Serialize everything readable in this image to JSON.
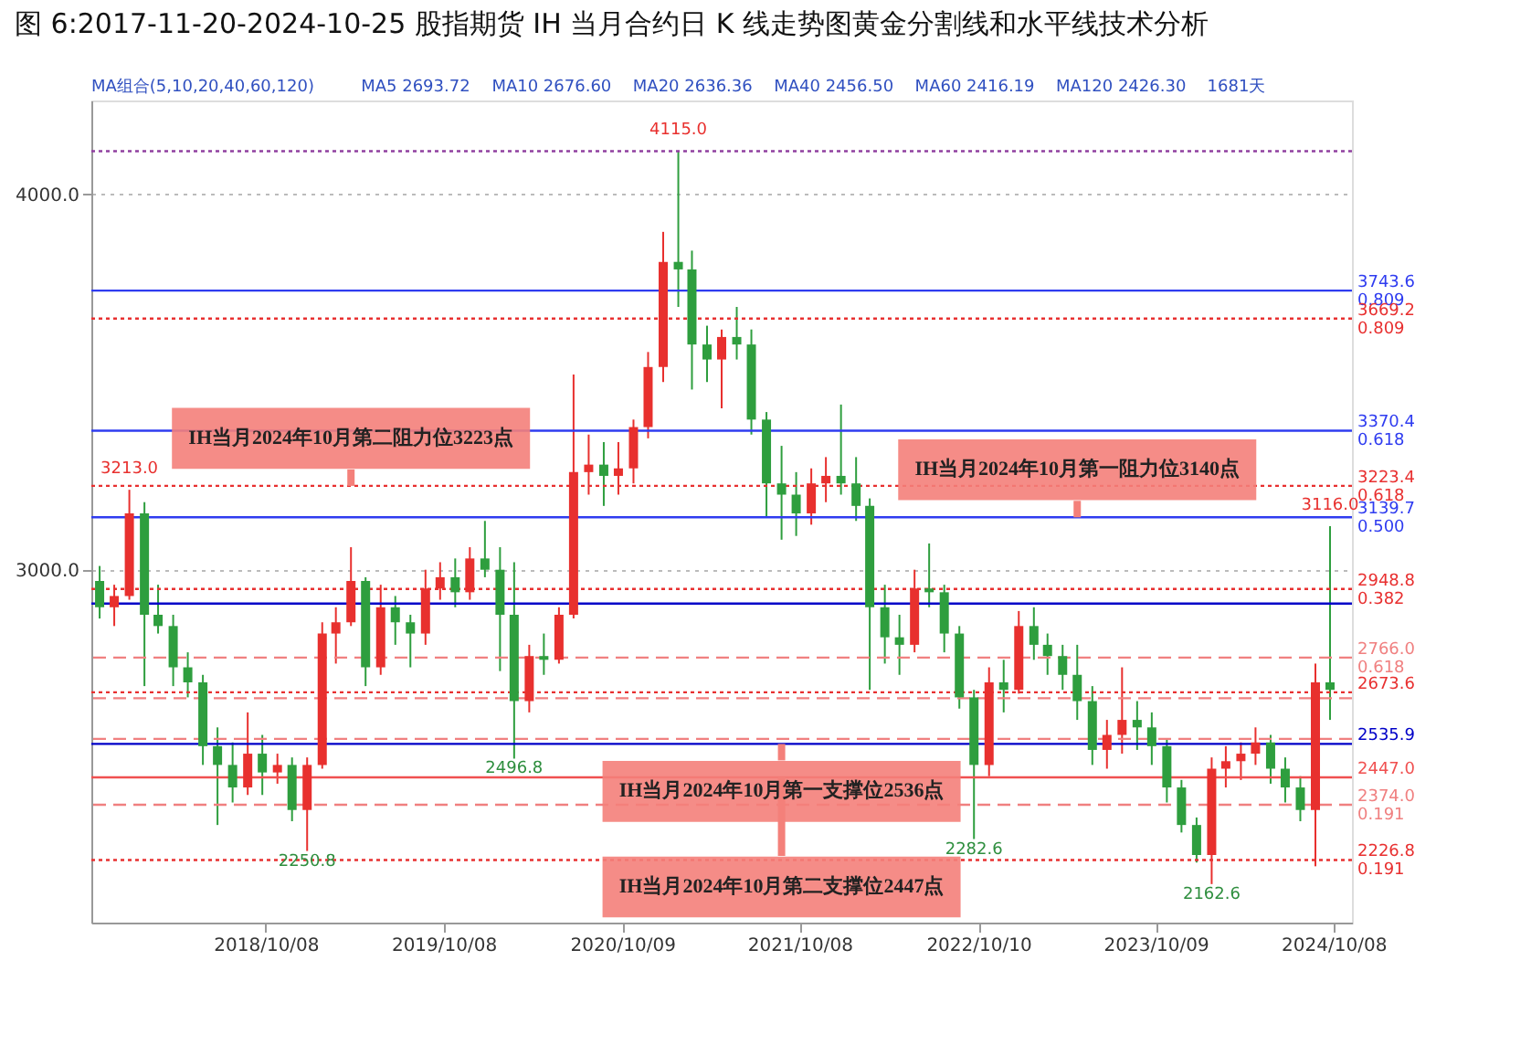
{
  "chart_data": {
    "type": "candlestick",
    "title": "图 6:2017-11-20-2024-10-25 股指期货 IH 当月合约日 K 线走势图黄金分割线和水平线技术分析",
    "x": [
      "2017-11",
      "2017-12",
      "2018-01",
      "2018-02",
      "2018-03",
      "2018-04",
      "2018-05",
      "2018-06",
      "2018-07",
      "2018-08",
      "2018-09",
      "2018-10",
      "2018-11",
      "2018-12",
      "2019-01",
      "2019-02",
      "2019-03",
      "2019-04",
      "2019-05",
      "2019-06",
      "2019-07",
      "2019-08",
      "2019-09",
      "2019-10",
      "2019-11",
      "2019-12",
      "2020-01",
      "2020-02",
      "2020-03",
      "2020-04",
      "2020-05",
      "2020-06",
      "2020-07",
      "2020-08",
      "2020-09",
      "2020-10",
      "2020-11",
      "2020-12",
      "2021-01",
      "2021-02",
      "2021-03",
      "2021-04",
      "2021-05",
      "2021-06",
      "2021-07",
      "2021-08",
      "2021-09",
      "2021-10",
      "2021-11",
      "2021-12",
      "2022-01",
      "2022-02",
      "2022-03",
      "2022-04",
      "2022-05",
      "2022-06",
      "2022-07",
      "2022-08",
      "2022-09",
      "2022-10",
      "2022-11",
      "2022-12",
      "2023-01",
      "2023-02",
      "2023-03",
      "2023-04",
      "2023-05",
      "2023-06",
      "2023-07",
      "2023-08",
      "2023-09",
      "2023-10",
      "2023-11",
      "2023-12",
      "2024-01",
      "2024-02",
      "2024-03",
      "2024-04",
      "2024-05",
      "2024-06",
      "2024-07",
      "2024-08",
      "2024-09",
      "2024-10"
    ],
    "ohlc": [
      [
        2970,
        3010,
        2870,
        2900
      ],
      [
        2900,
        2960,
        2850,
        2930
      ],
      [
        2930,
        3213.0,
        2920,
        3150
      ],
      [
        3150,
        3180,
        2690,
        2880
      ],
      [
        2880,
        2960,
        2830,
        2850
      ],
      [
        2850,
        2880,
        2690,
        2740
      ],
      [
        2740,
        2780,
        2660,
        2700
      ],
      [
        2700,
        2720,
        2480,
        2530
      ],
      [
        2530,
        2580,
        2320,
        2480
      ],
      [
        2480,
        2540,
        2380,
        2420
      ],
      [
        2420,
        2620,
        2400,
        2510
      ],
      [
        2510,
        2560,
        2400,
        2460
      ],
      [
        2460,
        2510,
        2430,
        2480
      ],
      [
        2480,
        2500,
        2330,
        2360
      ],
      [
        2360,
        2500,
        2250.8,
        2480
      ],
      [
        2480,
        2860,
        2470,
        2830
      ],
      [
        2830,
        2900,
        2750,
        2860
      ],
      [
        2860,
        3060,
        2850,
        2970
      ],
      [
        2970,
        2980,
        2690,
        2740
      ],
      [
        2740,
        2960,
        2720,
        2900
      ],
      [
        2900,
        2930,
        2800,
        2860
      ],
      [
        2860,
        2880,
        2740,
        2830
      ],
      [
        2830,
        3000,
        2800,
        2950
      ],
      [
        2950,
        3020,
        2920,
        2980
      ],
      [
        2980,
        3030,
        2900,
        2940
      ],
      [
        2940,
        3060,
        2920,
        3030
      ],
      [
        3030,
        3130,
        2980,
        3000
      ],
      [
        3000,
        3060,
        2730,
        2880
      ],
      [
        2880,
        3020,
        2496.8,
        2650
      ],
      [
        2650,
        2800,
        2620,
        2770
      ],
      [
        2770,
        2830,
        2720,
        2760
      ],
      [
        2760,
        2900,
        2750,
        2880
      ],
      [
        2880,
        3520,
        2870,
        3260
      ],
      [
        3260,
        3360,
        3200,
        3280
      ],
      [
        3280,
        3340,
        3170,
        3250
      ],
      [
        3250,
        3340,
        3200,
        3270
      ],
      [
        3270,
        3400,
        3230,
        3380
      ],
      [
        3380,
        3580,
        3350,
        3540
      ],
      [
        3540,
        3900,
        3500,
        3820
      ],
      [
        3820,
        4115.0,
        3700,
        3800
      ],
      [
        3800,
        3850,
        3480,
        3600
      ],
      [
        3600,
        3650,
        3500,
        3560
      ],
      [
        3560,
        3640,
        3430,
        3620
      ],
      [
        3620,
        3700,
        3560,
        3600
      ],
      [
        3600,
        3640,
        3360,
        3400
      ],
      [
        3400,
        3420,
        3140,
        3230
      ],
      [
        3230,
        3330,
        3080,
        3200
      ],
      [
        3200,
        3260,
        3090,
        3150
      ],
      [
        3150,
        3270,
        3120,
        3230
      ],
      [
        3230,
        3300,
        3180,
        3250
      ],
      [
        3250,
        3440,
        3200,
        3230
      ],
      [
        3230,
        3300,
        3130,
        3170
      ],
      [
        3170,
        3190,
        2680,
        2900
      ],
      [
        2900,
        2960,
        2750,
        2820
      ],
      [
        2820,
        2880,
        2720,
        2800
      ],
      [
        2800,
        3000,
        2780,
        2950
      ],
      [
        2950,
        3070,
        2900,
        2940
      ],
      [
        2940,
        2960,
        2780,
        2830
      ],
      [
        2830,
        2850,
        2630,
        2660
      ],
      [
        2660,
        2680,
        2282.6,
        2480
      ],
      [
        2480,
        2740,
        2450,
        2700
      ],
      [
        2700,
        2760,
        2620,
        2680
      ],
      [
        2680,
        2890,
        2670,
        2850
      ],
      [
        2850,
        2900,
        2760,
        2800
      ],
      [
        2800,
        2830,
        2720,
        2770
      ],
      [
        2770,
        2800,
        2680,
        2720
      ],
      [
        2720,
        2800,
        2600,
        2650
      ],
      [
        2650,
        2690,
        2480,
        2520
      ],
      [
        2520,
        2600,
        2470,
        2560
      ],
      [
        2560,
        2740,
        2510,
        2600
      ],
      [
        2600,
        2650,
        2520,
        2580
      ],
      [
        2580,
        2620,
        2480,
        2530
      ],
      [
        2530,
        2550,
        2380,
        2420
      ],
      [
        2420,
        2440,
        2300,
        2320
      ],
      [
        2320,
        2340,
        2220,
        2240
      ],
      [
        2240,
        2500,
        2162.6,
        2470
      ],
      [
        2470,
        2530,
        2420,
        2490
      ],
      [
        2490,
        2540,
        2440,
        2510
      ],
      [
        2510,
        2580,
        2480,
        2540
      ],
      [
        2540,
        2560,
        2430,
        2470
      ],
      [
        2470,
        2500,
        2380,
        2420
      ],
      [
        2420,
        2450,
        2330,
        2360
      ],
      [
        2360,
        2750,
        2210,
        2700
      ],
      [
        2700,
        3116.0,
        2600,
        2680
      ]
    ],
    "colors": [
      "#2e9e3e",
      "#e8302e",
      "#e8302e",
      "#2e9e3e",
      "#2e9e3e",
      "#2e9e3e",
      "#2e9e3e",
      "#2e9e3e",
      "#2e9e3e",
      "#2e9e3e",
      "#e8302e",
      "#2e9e3e",
      "#e8302e",
      "#2e9e3e",
      "#e8302e",
      "#e8302e",
      "#e8302e",
      "#e8302e",
      "#2e9e3e",
      "#e8302e",
      "#2e9e3e",
      "#2e9e3e",
      "#e8302e",
      "#e8302e",
      "#2e9e3e",
      "#e8302e",
      "#2e9e3e",
      "#2e9e3e",
      "#2e9e3e",
      "#e8302e",
      "#2e9e3e",
      "#e8302e",
      "#e8302e",
      "#e8302e",
      "#2e9e3e",
      "#e8302e",
      "#e8302e",
      "#e8302e",
      "#e8302e",
      "#2e9e3e",
      "#2e9e3e",
      "#2e9e3e",
      "#e8302e",
      "#2e9e3e",
      "#2e9e3e",
      "#2e9e3e",
      "#2e9e3e",
      "#2e9e3e",
      "#e8302e",
      "#e8302e",
      "#2e9e3e",
      "#2e9e3e",
      "#2e9e3e",
      "#2e9e3e",
      "#2e9e3e",
      "#e8302e",
      "#2e9e3e",
      "#2e9e3e",
      "#2e9e3e",
      "#2e9e3e",
      "#e8302e",
      "#2e9e3e",
      "#e8302e",
      "#2e9e3e",
      "#2e9e3e",
      "#2e9e3e",
      "#2e9e3e",
      "#2e9e3e",
      "#e8302e",
      "#e8302e",
      "#2e9e3e",
      "#2e9e3e",
      "#2e9e3e",
      "#2e9e3e",
      "#2e9e3e",
      "#e8302e",
      "#e8302e",
      "#e8302e",
      "#e8302e",
      "#2e9e3e",
      "#2e9e3e",
      "#2e9e3e",
      "#e8302e",
      "#2e9e3e"
    ],
    "xlim": [
      "2017-10-15",
      "2024-11-15"
    ],
    "xticks": [
      {
        "value": "2018-10-08",
        "label": "2018/10/08"
      },
      {
        "value": "2019-10-08",
        "label": "2019/10/08"
      },
      {
        "value": "2020-10-09",
        "label": "2020/10/09"
      },
      {
        "value": "2021-10-08",
        "label": "2021/10/08"
      },
      {
        "value": "2022-10-10",
        "label": "2022/10/10"
      },
      {
        "value": "2023-10-09",
        "label": "2023/10/09"
      },
      {
        "value": "2024-10-08",
        "label": "2024/10/08"
      }
    ],
    "ylim": [
      2060,
      4250
    ],
    "yticks": [
      {
        "value": 3000,
        "label": "3000.0"
      },
      {
        "value": 4000,
        "label": "4000.0"
      }
    ],
    "grid": "y",
    "ref_lines": [
      {
        "axis": "y",
        "value": 4115,
        "label": null,
        "color": "#9040a0",
        "line_style": "dotted"
      },
      {
        "axis": "y",
        "value": 3743.6,
        "label": "3743.6\n0.809",
        "color": "#2f3cf0",
        "line_style": "solid"
      },
      {
        "axis": "y",
        "value": 3669.2,
        "label": "3669.2\n0.809",
        "color": "#e83030",
        "line_style": "dotted"
      },
      {
        "axis": "y",
        "value": 3370.4,
        "label": "3370.4\n0.618",
        "color": "#2f3cf0",
        "line_style": "solid"
      },
      {
        "axis": "y",
        "value": 3223.4,
        "label": "3223.4\n0.618",
        "color": "#e83030",
        "line_style": "dotted"
      },
      {
        "axis": "y",
        "value": 3139.7,
        "label": "3139.7\n0.500",
        "color": "#2f3cf0",
        "line_style": "solid"
      },
      {
        "axis": "y",
        "value": 2948.8,
        "label": "2948.8\n0.382",
        "color": "#e83030",
        "line_style": "dotted"
      },
      {
        "axis": "y",
        "value": 2910,
        "label": null,
        "color": "#0000c8",
        "line_style": "solid"
      },
      {
        "axis": "y",
        "value": 2766.0,
        "label": "2766.0\n0.618",
        "color": "#f08080",
        "line_style": "dashed"
      },
      {
        "axis": "y",
        "value": 2673.6,
        "label": "2673.6",
        "color": "#e83030",
        "line_style": "dotted"
      },
      {
        "axis": "y",
        "value": 2657.7,
        "label": null,
        "color": "#f08080",
        "line_style": "dashed"
      },
      {
        "axis": "y",
        "value": 2549.3,
        "label": null,
        "color": "#f08080",
        "line_style": "dashed"
      },
      {
        "axis": "y",
        "value": 2535.9,
        "label": "2535.9",
        "color": "#0000c8",
        "line_style": "solid"
      },
      {
        "axis": "y",
        "value": 2447.0,
        "label": "2447.0",
        "color": "#f05050",
        "line_style": "solid"
      },
      {
        "axis": "y",
        "value": 2374.0,
        "label": "2374.0\n0.191",
        "color": "#f08080",
        "line_style": "dashed"
      },
      {
        "axis": "y",
        "value": 2226.8,
        "label": "2226.8\n0.191",
        "color": "#e83030",
        "line_style": "dotted"
      }
    ],
    "annotations": [
      "MA组合(5,10,20,40,60,120)",
      "MA5 2693.72",
      "MA10 2676.60",
      "MA20 2636.36",
      "MA40 2456.50",
      "MA60 2416.19",
      "MA120 2426.30",
      "1681天",
      {
        "text": "3213.0",
        "x": "2018-01",
        "y": 3213.0
      },
      {
        "text": "2250.8",
        "x": "2019-01",
        "y": 2250.8
      },
      {
        "text": "2496.8",
        "x": "2020-03",
        "y": 2496.8
      },
      {
        "text": "4115.0",
        "x": "2021-02",
        "y": 4115.0
      },
      {
        "text": "2282.6",
        "x": "2022-10",
        "y": 2282.6
      },
      {
        "text": "2162.6",
        "x": "2024-02",
        "y": 2162.6
      },
      {
        "text": "3116.0",
        "x": "2024-10",
        "y": 3116.0
      },
      {
        "text": "IH当月2024年10月第二阻力位3223点",
        "x": "2019-04",
        "y": 3223.4
      },
      {
        "text": "IH当月2024年10月第一阻力位3140点",
        "x": "2023-05",
        "y": 3139.7
      },
      {
        "text": "IH当月2024年10月第一支撑位2536点",
        "x": "2021-09",
        "y": 2535.9
      },
      {
        "text": "IH当月2024年10月第二支撑位2447点",
        "x": "2021-09",
        "y": 2447.0
      }
    ]
  }
}
